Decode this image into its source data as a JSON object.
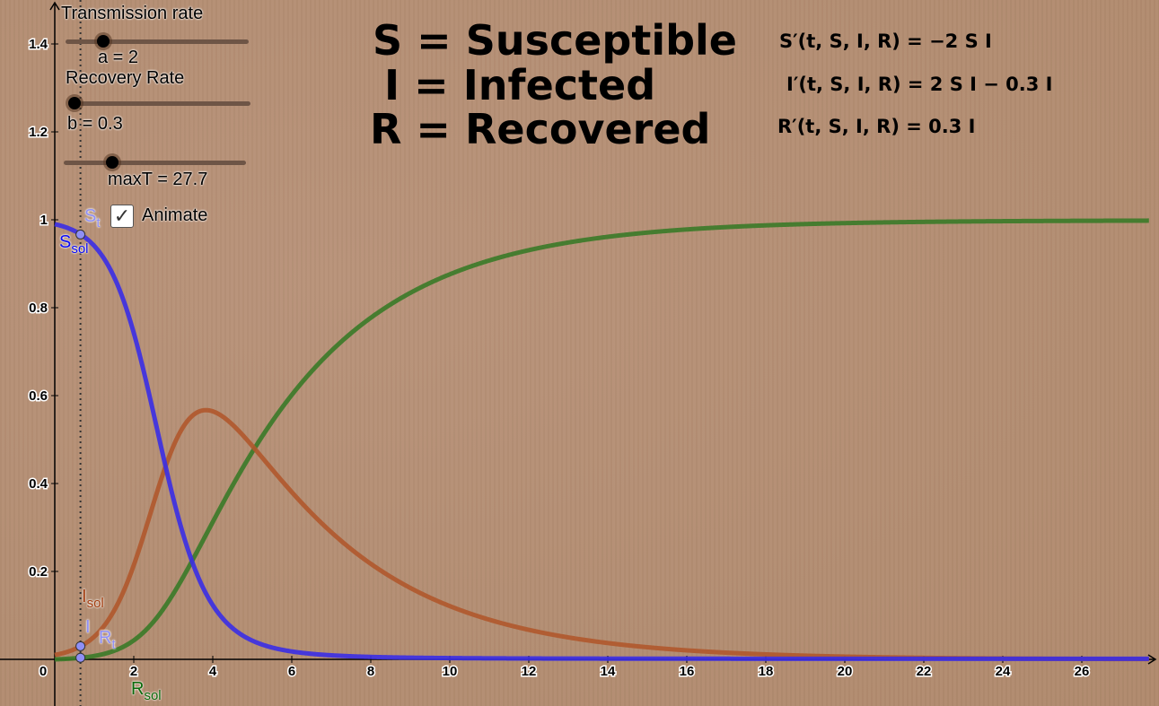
{
  "titles": {
    "s": "S = Susceptible",
    "i": "I = Infected",
    "r": "R = Recovered"
  },
  "equations": {
    "s": "S′(t, S, I, R) = −2 S I",
    "i": "I′(t, S, I, R) = 2 S I − 0.3 I",
    "r": "R′(t, S, I, R) = 0.3 I"
  },
  "controls": {
    "transmission_label": "Transmission rate",
    "a_label": "a = 2",
    "recovery_label": "Recovery Rate",
    "b_label": "b = 0.3",
    "maxT_label": "maxT = 27.7",
    "animate_label": "Animate",
    "animate_checked": true,
    "check_glyph": "✓"
  },
  "sliders": {
    "a": {
      "value": 2,
      "fraction": 0.2
    },
    "b": {
      "value": 0.3,
      "fraction": 0.05
    },
    "maxT": {
      "value": 27.7,
      "fraction": 0.27
    }
  },
  "point_labels": {
    "s_t": "S",
    "s_t_sub": "t",
    "s_sol": "S",
    "s_sol_sub": "sol",
    "i_sol": "I",
    "i_sol_sub": "sol",
    "i_t": "I",
    "r_t": "R",
    "t_sub": "t",
    "r_sol": "R",
    "r_sol_sub": "sol"
  },
  "colors": {
    "s_curve": "#3a2ee6",
    "i_curve": "#b0582c",
    "r_curve": "#3a7a28",
    "s_text": "#0a0af5",
    "i_text": "#a23c0e",
    "r_text": "#0b6a0b",
    "point": "#8f8ff5"
  },
  "chart_data": {
    "type": "line",
    "model": "SIR",
    "parameters": {
      "a": 2,
      "b": 0.3,
      "maxT": 27.7,
      "t_current": 0.65
    },
    "initial": {
      "S": 0.99,
      "I": 0.01,
      "R": 0
    },
    "series": [
      {
        "name": "S",
        "equation": "S′ = −2 S I",
        "sample_t": [
          0,
          2,
          4,
          6,
          8,
          10,
          14,
          20,
          27.7
        ],
        "sample_values": [
          0.99,
          0.9,
          0.17,
          0.02,
          0.01,
          0.006,
          0.005,
          0.005,
          0.005
        ]
      },
      {
        "name": "I",
        "equation": "I′ = 2 S I − 0.3 I",
        "sample_t": [
          0,
          2,
          4,
          6,
          8,
          10,
          14,
          20,
          27.7
        ],
        "sample_values": [
          0.01,
          0.14,
          0.56,
          0.4,
          0.23,
          0.13,
          0.04,
          0.006,
          0.001
        ]
      },
      {
        "name": "R",
        "equation": "R′ = 0.3 I",
        "sample_t": [
          0,
          2,
          4,
          6,
          8,
          10,
          14,
          20,
          27.7
        ],
        "sample_values": [
          0,
          0.03,
          0.27,
          0.58,
          0.76,
          0.86,
          0.95,
          0.99,
          0.995
        ]
      }
    ],
    "xlim": [
      0,
      27.7
    ],
    "ylim": [
      0,
      1.45
    ],
    "x_ticks": [
      "0",
      "2",
      "4",
      "6",
      "8",
      "10",
      "12",
      "14",
      "16",
      "18",
      "20",
      "22",
      "24",
      "26"
    ],
    "y_ticks": [
      "0.2",
      "0.4",
      "0.6",
      "0.8",
      "1",
      "1.2",
      "1.4"
    ],
    "grid": false
  }
}
